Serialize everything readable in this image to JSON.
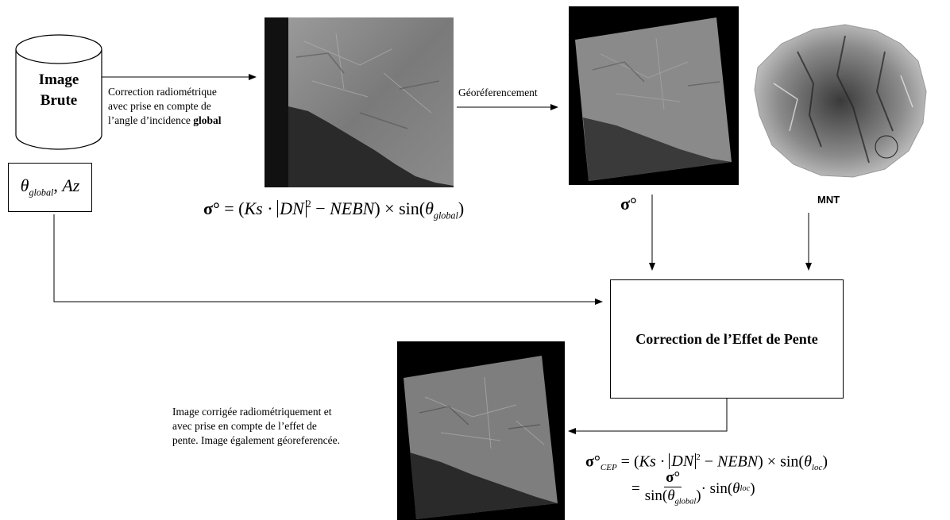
{
  "database": {
    "line1": "Image",
    "line2": "Brute"
  },
  "angle_box": {
    "theta": "θ",
    "theta_sub": "global",
    "sep": ", ",
    "az": "Az"
  },
  "correction_label": {
    "line1": "Correction radiométrique",
    "line2": "avec prise en compte de",
    "line3_pre": "l’angle d’incidence ",
    "line3_bold": "global"
  },
  "geo_label": "Géoréferencement",
  "mnt_label": "MNT",
  "slope_box": "Correction de l’Effet de Pente",
  "result_caption": {
    "line1": "Image corrigée radiométriquement et",
    "line2": "avec prise en compte de l’effet de",
    "line3": "pente. Image également géoreferencée."
  },
  "formula1": {
    "lhs": "σ°",
    "eq": " = (",
    "ks": "Ks",
    "dot": " · ",
    "dn": "DN",
    "sq": "2",
    "minus": " − ",
    "nebn": "NEBN",
    "times": ") × sin(",
    "theta": "θ",
    "theta_sub": "global",
    "close": ")"
  },
  "sigma_label": "σ°",
  "formula2": {
    "lhs": "σ°",
    "lhs_sub": "CEP",
    "eq": " = (",
    "ks": "Ks",
    "dot": " · ",
    "dn": "DN",
    "sq": "2",
    "minus": " − ",
    "nebn": "NEBN",
    "times": ") × sin(",
    "theta": "θ",
    "theta_sub": "loc",
    "close": ")",
    "eq2": "=",
    "frac_num": "σ°",
    "frac_den_pre": "sin(",
    "frac_den_theta": "θ",
    "frac_den_sub": "global",
    "frac_den_close": ")",
    "tail_dot": " · sin(",
    "tail_theta": "θ",
    "tail_sub": "loc",
    "tail_close": ")"
  },
  "colors": {
    "line": "#000000",
    "sar_dark": "#1c1c1c",
    "sar_mid": "#6e6e6e",
    "sar_light": "#a8a8a8"
  }
}
